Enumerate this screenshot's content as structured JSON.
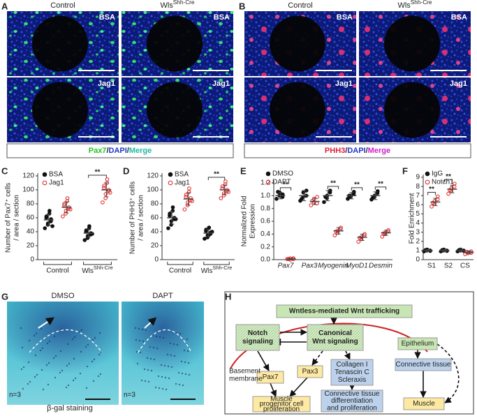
{
  "figure": {
    "labels": [
      "A",
      "B",
      "C",
      "D",
      "E",
      "F",
      "G",
      "H"
    ],
    "a": {
      "columns": [
        "Control",
        {
          "base": "Wls",
          "sup": "Shh-Cre"
        }
      ],
      "rows": [
        "BSA",
        "Jag1"
      ],
      "caption": [
        {
          "text": "Pax7",
          "color": "#1ec81e"
        },
        {
          "text": "/",
          "color": "#222222"
        },
        {
          "text": "DAPI",
          "color": "#2233cc"
        },
        {
          "text": "/",
          "color": "#222222"
        },
        {
          "text": "Merge",
          "color": "#1fb8a8"
        }
      ]
    },
    "b": {
      "columns": [
        "Control",
        {
          "base": "Wls",
          "sup": "Shh-Cre"
        }
      ],
      "rows": [
        "BSA",
        "Jag1"
      ],
      "caption": [
        {
          "text": "PHH3",
          "color": "#e0203a"
        },
        {
          "text": "/",
          "color": "#222222"
        },
        {
          "text": "DAPI",
          "color": "#2233cc"
        },
        {
          "text": "/",
          "color": "#222222"
        },
        {
          "text": "Merge",
          "color": "#d020c8"
        }
      ]
    },
    "g": {
      "columns": [
        "DMSO",
        "DAPT"
      ],
      "n": [
        "n=3",
        "n=3"
      ],
      "caption": "β-gal staining"
    }
  },
  "chart_data": [
    {
      "type": "dot",
      "y_label": [
        "Number of Pax7⁺ cells",
        "/ area / section"
      ],
      "categories": [
        "Control",
        {
          "base": "Wls",
          "sup": "Shh-Cre"
        }
      ],
      "series": [
        {
          "name": "BSA",
          "color": "#111111",
          "filled": true,
          "values": [
            [
              45,
              50,
              52,
              55,
              58,
              60,
              62,
              66,
              70,
              48
            ],
            [
              28,
              31,
              34,
              36,
              38,
              40,
              42,
              45,
              48,
              37
            ]
          ],
          "means": [
            57,
            38
          ],
          "errors": [
            8,
            6
          ]
        },
        {
          "name": "Jag1",
          "color": "#e02020",
          "filled": false,
          "values": [
            [
              62,
              66,
              70,
              73,
              75,
              78,
              80,
              84,
              88,
              72
            ],
            [
              82,
              88,
              94,
              98,
              100,
              103,
              106,
              110,
              115,
              96
            ]
          ],
          "means": [
            75,
            100
          ],
          "errors": [
            8,
            10
          ]
        }
      ],
      "significance": [
        null,
        "**"
      ],
      "ylim": [
        0,
        120
      ],
      "yticks": [
        0,
        20,
        40,
        60,
        80,
        100,
        120
      ]
    },
    {
      "type": "dot",
      "y_label": [
        "Number of PHH3⁺ cells",
        "/ area / section"
      ],
      "categories": [
        "Control",
        {
          "base": "Wls",
          "sup": "Shh-Cre"
        }
      ],
      "series": [
        {
          "name": "BSA",
          "color": "#111111",
          "filled": true,
          "values": [
            [
              45,
              50,
              55,
              58,
              60,
              63,
              66,
              70,
              75,
              58
            ],
            [
              30,
              32,
              35,
              37,
              39,
              41,
              43,
              46,
              36,
              40
            ]
          ],
          "means": [
            60,
            38
          ],
          "errors": [
            9,
            5
          ]
        },
        {
          "name": "Jag1",
          "color": "#e02020",
          "filled": false,
          "values": [
            [
              72,
              78,
              82,
              85,
              88,
              90,
              93,
              97,
              102,
              84
            ],
            [
              88,
              92,
              95,
              98,
              100,
              102,
              105,
              108,
              112,
              97
            ]
          ],
          "means": [
            87,
            100
          ],
          "errors": [
            9,
            7
          ]
        }
      ],
      "significance": [
        null,
        "**"
      ],
      "ylim": [
        0,
        120
      ],
      "yticks": [
        0,
        20,
        40,
        60,
        80,
        100,
        120
      ]
    },
    {
      "type": "dot",
      "y_label": [
        "Normalized Fold",
        "Expression"
      ],
      "categories": [
        "Pax7",
        "Pax3",
        "Myogenin",
        "MyoD1",
        "Desmin"
      ],
      "series": [
        {
          "name": "DMSO",
          "color": "#111111",
          "filled": true,
          "values": [
            [
              0.95,
              1.0,
              1.05,
              0.98,
              1.02,
              1.06
            ],
            [
              0.92,
              0.98,
              1.05,
              1.0,
              1.08,
              0.95
            ],
            [
              0.9,
              0.96,
              1.0,
              1.05,
              1.08,
              0.98
            ],
            [
              0.95,
              0.98,
              1.0,
              1.03,
              1.06,
              1.0
            ],
            [
              0.94,
              0.98,
              1.0,
              1.04,
              1.07,
              0.97
            ]
          ],
          "means": [
            1.0,
            1.0,
            1.0,
            1.0,
            1.0
          ],
          "errors": [
            0.05,
            0.08,
            0.08,
            0.05,
            0.06
          ]
        },
        {
          "name": "DAPT",
          "color": "#e02020",
          "filled": false,
          "values": [
            [
              0.01,
              0.02,
              0.0,
              0.01,
              0.02,
              0.01
            ],
            [
              0.85,
              0.9,
              0.95,
              0.88,
              0.98,
              0.92
            ],
            [
              0.38,
              0.42,
              0.45,
              0.48,
              0.5,
              0.44
            ],
            [
              0.28,
              0.32,
              0.35,
              0.38,
              0.4,
              0.34
            ],
            [
              0.36,
              0.4,
              0.42,
              0.44,
              0.46,
              0.41
            ]
          ],
          "means": [
            0.01,
            0.91,
            0.45,
            0.35,
            0.42
          ],
          "errors": [
            0.01,
            0.05,
            0.05,
            0.05,
            0.04
          ]
        }
      ],
      "significance": [
        "**",
        null,
        "**",
        "**",
        "**"
      ],
      "ylim": [
        0,
        1.2
      ],
      "yticks": [
        {
          "value": 0,
          "label": "0.0"
        },
        0.2,
        0.4,
        0.6,
        0.8,
        {
          "value": 1,
          "label": "1.0"
        },
        1.2
      ]
    },
    {
      "type": "dot",
      "y_label": [
        "Fold Enrichment"
      ],
      "categories": [
        "S1",
        "S2",
        "CS"
      ],
      "series": [
        {
          "name": "IgG",
          "color": "#111111",
          "filled": true,
          "values": [
            [
              0.9,
              1.0,
              1.1,
              1.0,
              0.95,
              1.05
            ],
            [
              0.9,
              1.0,
              1.1,
              1.0,
              0.95,
              1.05
            ],
            [
              0.9,
              1.0,
              1.1,
              1.0,
              0.95,
              1.05
            ]
          ],
          "means": [
            1,
            1,
            1
          ],
          "errors": [
            0.1,
            0.1,
            0.15
          ]
        },
        {
          "name": "Notch1",
          "color": "#e02020",
          "filled": false,
          "values": [
            [
              5.8,
              6.1,
              6.4,
              6.6,
              6.9,
              6.2
            ],
            [
              7.2,
              7.5,
              7.8,
              8.0,
              8.3,
              7.6
            ],
            [
              0.6,
              0.7,
              0.8,
              0.9,
              0.75,
              0.85
            ]
          ],
          "means": [
            6.3,
            7.7,
            0.8
          ],
          "errors": [
            0.4,
            0.4,
            0.15
          ]
        }
      ],
      "significance": [
        "**",
        "**",
        null
      ],
      "ylim": [
        0,
        9
      ],
      "yticks": [
        0,
        1,
        2,
        3,
        4,
        5,
        6,
        7,
        8,
        9
      ]
    }
  ],
  "diagram": {
    "nodes": [
      [
        "Wntless-mediated Wnt trafficking"
      ],
      [
        "Notch",
        "signaling"
      ],
      [
        "Canonical",
        "Wnt signaling"
      ],
      [
        "Epithelium"
      ],
      [
        "Pax7"
      ],
      [
        "Pax3"
      ],
      [
        "Collagen I",
        "Tenascin C",
        "Scleraxis"
      ],
      [
        "Connective tissue"
      ],
      [
        "Muscle",
        "progenitor cell",
        "proliferation"
      ],
      [
        "Connective tissue",
        "differentiation",
        "and proliferation"
      ],
      [
        "Muscle"
      ]
    ],
    "label": [
      "Basement",
      "membrane"
    ]
  }
}
